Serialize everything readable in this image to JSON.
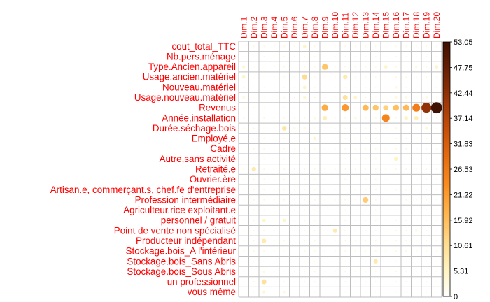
{
  "chart_data": {
    "type": "heatmap",
    "columns": [
      "Dim.1",
      "Dim.2",
      "Dim.3",
      "Dim.4",
      "Dim.5",
      "Dim.6",
      "Dim.7",
      "Dim.8",
      "Dim.9",
      "Dim.10",
      "Dim.11",
      "Dim.12",
      "Dim.13",
      "Dim.14",
      "Dim.15",
      "Dim.16",
      "Dim.17",
      "Dim.18",
      "Dim.19",
      "Dim.20"
    ],
    "rows": [
      {
        "label": "cout_total_TTC",
        "values": [
          0,
          0,
          0,
          0,
          0,
          0,
          5,
          0,
          0,
          0,
          0,
          0,
          0,
          0,
          0,
          0,
          0,
          0,
          0,
          0
        ]
      },
      {
        "label": "Nb.pers.ménage",
        "values": [
          0,
          1,
          0,
          1,
          0,
          0,
          0,
          0,
          0,
          0,
          0,
          0,
          0,
          0,
          0,
          0,
          0,
          0,
          0,
          0
        ]
      },
      {
        "label": "Type.Ancien.appareil",
        "values": [
          4,
          1,
          1,
          0,
          0,
          1,
          0,
          0,
          15,
          0,
          0,
          0,
          0,
          2,
          5,
          0,
          1,
          3,
          2,
          5
        ]
      },
      {
        "label": "Usage.ancien.matériel",
        "values": [
          5,
          1,
          1,
          0,
          2,
          2,
          11,
          0,
          0,
          0,
          8,
          0,
          0,
          0,
          0,
          0,
          0,
          0,
          0,
          0
        ]
      },
      {
        "label": "Nouveau.matériel",
        "values": [
          2,
          1,
          0,
          0,
          0,
          0,
          5,
          0,
          0,
          0,
          0,
          0,
          0,
          0,
          0,
          3,
          0,
          0,
          1,
          0
        ]
      },
      {
        "label": "Usage.nouveau.matériel",
        "values": [
          3,
          1,
          1,
          1,
          0,
          0,
          4,
          0,
          0,
          0,
          10,
          5,
          0,
          1,
          0,
          3,
          3,
          1,
          3,
          0
        ]
      },
      {
        "label": "Revenus",
        "values": [
          2,
          0,
          0,
          0,
          0,
          0,
          0,
          1,
          19,
          1,
          22,
          2,
          17,
          15,
          13,
          16,
          17,
          26,
          42,
          53
        ]
      },
      {
        "label": "Année.installation",
        "values": [
          2,
          1,
          0,
          0,
          0,
          0,
          0,
          3,
          7,
          0,
          0,
          3,
          0,
          0,
          25,
          0,
          6,
          7,
          2,
          0
        ]
      },
      {
        "label": "Durée.séchage.bois",
        "values": [
          2,
          0,
          1,
          1,
          9,
          3,
          3,
          1,
          1,
          0,
          0,
          0,
          0,
          0,
          2,
          3,
          1,
          1,
          4,
          0
        ]
      },
      {
        "label": "Employé.e",
        "values": [
          0,
          1,
          0,
          1,
          0,
          0,
          1,
          5,
          0,
          0,
          0,
          0,
          0,
          0,
          0,
          0,
          0,
          0,
          0,
          0
        ]
      },
      {
        "label": "Cadre",
        "values": [
          1,
          0,
          0,
          1,
          0,
          0,
          0,
          0,
          0,
          0,
          0,
          0,
          0,
          0,
          0,
          0,
          0,
          0,
          0,
          0
        ]
      },
      {
        "label": "Autre,sans activité",
        "values": [
          0,
          1,
          0,
          0,
          0,
          0,
          0,
          0,
          0,
          0,
          0,
          2,
          2,
          2,
          0,
          6,
          1,
          0,
          0,
          0
        ]
      },
      {
        "label": "Retraité.e",
        "values": [
          0,
          8,
          0,
          1,
          0,
          0,
          0,
          0,
          0,
          0,
          0,
          0,
          0,
          0,
          0,
          0,
          0,
          0,
          0,
          0
        ]
      },
      {
        "label": "Ouvrier.ère",
        "values": [
          0,
          0,
          0,
          0,
          0,
          0,
          0,
          0,
          0,
          1,
          0,
          1,
          0,
          0,
          0,
          1,
          1,
          0,
          0,
          0
        ]
      },
      {
        "label": "Artisan.e, commerçant.s, chef.fe d'entreprise",
        "values": [
          0,
          0,
          0,
          0,
          0,
          0,
          0,
          0,
          0,
          0,
          1,
          0,
          0,
          0,
          0,
          2,
          2,
          1,
          0,
          0
        ]
      },
      {
        "label": "Profession intermédiaire",
        "values": [
          0,
          0,
          0,
          0,
          0,
          0,
          0,
          0,
          0,
          0,
          0,
          0,
          14,
          0,
          0,
          1,
          0,
          0,
          0,
          0
        ]
      },
      {
        "label": "Agriculteur.rice exploitant.e",
        "values": [
          0,
          0,
          0,
          0,
          0,
          0,
          0,
          0,
          0,
          0,
          0,
          0,
          0,
          0,
          0,
          1,
          0,
          0,
          0,
          0
        ]
      },
      {
        "label": "personnel / gratuit",
        "values": [
          0,
          0,
          5,
          0,
          5,
          0,
          0,
          0,
          0,
          0,
          0,
          0,
          0,
          0,
          0,
          0,
          0,
          0,
          0,
          0
        ]
      },
      {
        "label": "Point de vente non spécialisé",
        "values": [
          0,
          0,
          0,
          0,
          1,
          0,
          0,
          0,
          0,
          8,
          0,
          0,
          0,
          0,
          0,
          0,
          0,
          3,
          0,
          0
        ]
      },
      {
        "label": "Producteur indépendant",
        "values": [
          0,
          0,
          8,
          0,
          0,
          1,
          0,
          0,
          0,
          0,
          0,
          0,
          0,
          0,
          0,
          0,
          0,
          0,
          0,
          0
        ]
      },
      {
        "label": "Stockage.bois_A l'intérieur",
        "values": [
          0,
          0,
          0,
          0,
          1,
          1,
          0,
          0,
          0,
          0,
          0,
          0,
          0,
          0,
          0,
          0,
          0,
          0,
          0,
          0
        ]
      },
      {
        "label": "Stockage.bois_Sans Abris",
        "values": [
          0,
          0,
          1,
          0,
          1,
          1,
          0,
          0,
          0,
          0,
          0,
          1,
          0,
          8,
          0,
          0,
          0,
          0,
          0,
          0
        ]
      },
      {
        "label": "Stockage.bois_Sous Abris",
        "values": [
          0,
          1,
          3,
          0,
          1,
          0,
          0,
          0,
          0,
          0,
          0,
          0,
          0,
          0,
          0,
          0,
          0,
          0,
          0,
          0
        ]
      },
      {
        "label": "un professionnel",
        "values": [
          0,
          0,
          10,
          0,
          0,
          1,
          0,
          0,
          0,
          0,
          0,
          0,
          0,
          0,
          0,
          0,
          0,
          0,
          0,
          0
        ]
      },
      {
        "label": "vous même",
        "values": [
          0,
          0,
          4,
          1,
          3,
          1,
          0,
          0,
          0,
          0,
          0,
          0,
          0,
          0,
          0,
          0,
          0,
          0,
          0,
          0
        ]
      }
    ],
    "colorbar": {
      "min": 0,
      "max": 53.05,
      "ticks": [
        "53.05",
        "47.75",
        "42.44",
        "37.14",
        "31.83",
        "26.53",
        "21.22",
        "15.92",
        "10.61",
        "5.31",
        "0"
      ],
      "colors": [
        "#FFFFFF",
        "#FFF3C0",
        "#FFD98A",
        "#FFB44D",
        "#F98C21",
        "#E56B10",
        "#C44E0A",
        "#9A3507",
        "#6B2106",
        "#3F1100"
      ]
    },
    "label_color": "#FF0000",
    "grid_color": "#BEBEBE"
  }
}
